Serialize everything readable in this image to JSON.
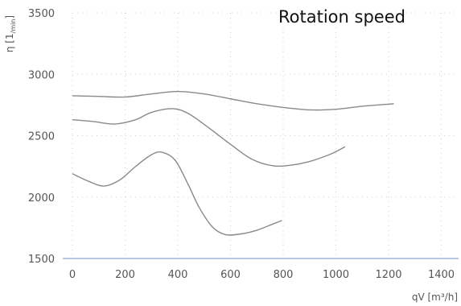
{
  "chart_data": {
    "type": "line",
    "title": "Rotation speed",
    "ylabel": "η [1/min]",
    "ylabel_parts": {
      "main": "η [1",
      "sub": "/min",
      "close": "]"
    },
    "xlabel": "qV [m³/h]",
    "xlim": [
      0,
      1450
    ],
    "ylim": [
      1500,
      3500
    ],
    "xticks": [
      0,
      200,
      400,
      600,
      800,
      1000,
      1200,
      1400
    ],
    "yticks": [
      1500,
      2000,
      2500,
      3000,
      3500
    ],
    "grid": true,
    "series": [
      {
        "values": [
          [
            0,
            2825
          ],
          [
            100,
            2820
          ],
          [
            200,
            2815
          ],
          [
            300,
            2840
          ],
          [
            400,
            2860
          ],
          [
            500,
            2840
          ],
          [
            600,
            2800
          ],
          [
            700,
            2760
          ],
          [
            800,
            2730
          ],
          [
            900,
            2710
          ],
          [
            1000,
            2715
          ],
          [
            1100,
            2740
          ],
          [
            1220,
            2760
          ]
        ]
      },
      {
        "values": [
          [
            0,
            2630
          ],
          [
            80,
            2615
          ],
          [
            160,
            2595
          ],
          [
            240,
            2630
          ],
          [
            300,
            2690
          ],
          [
            380,
            2720
          ],
          [
            440,
            2680
          ],
          [
            520,
            2560
          ],
          [
            600,
            2430
          ],
          [
            680,
            2310
          ],
          [
            760,
            2255
          ],
          [
            830,
            2260
          ],
          [
            900,
            2290
          ],
          [
            980,
            2350
          ],
          [
            1035,
            2410
          ]
        ]
      },
      {
        "values": [
          [
            0,
            2190
          ],
          [
            60,
            2130
          ],
          [
            120,
            2090
          ],
          [
            180,
            2140
          ],
          [
            240,
            2250
          ],
          [
            300,
            2345
          ],
          [
            340,
            2365
          ],
          [
            390,
            2300
          ],
          [
            440,
            2100
          ],
          [
            480,
            1920
          ],
          [
            530,
            1760
          ],
          [
            580,
            1695
          ],
          [
            640,
            1700
          ],
          [
            700,
            1730
          ],
          [
            760,
            1780
          ],
          [
            795,
            1810
          ]
        ]
      }
    ],
    "colors": {
      "line": "#8a8a8a",
      "grid": "#cfcfcf",
      "axis": "#b8c8e0",
      "text": "#555555",
      "title": "#111111"
    }
  }
}
